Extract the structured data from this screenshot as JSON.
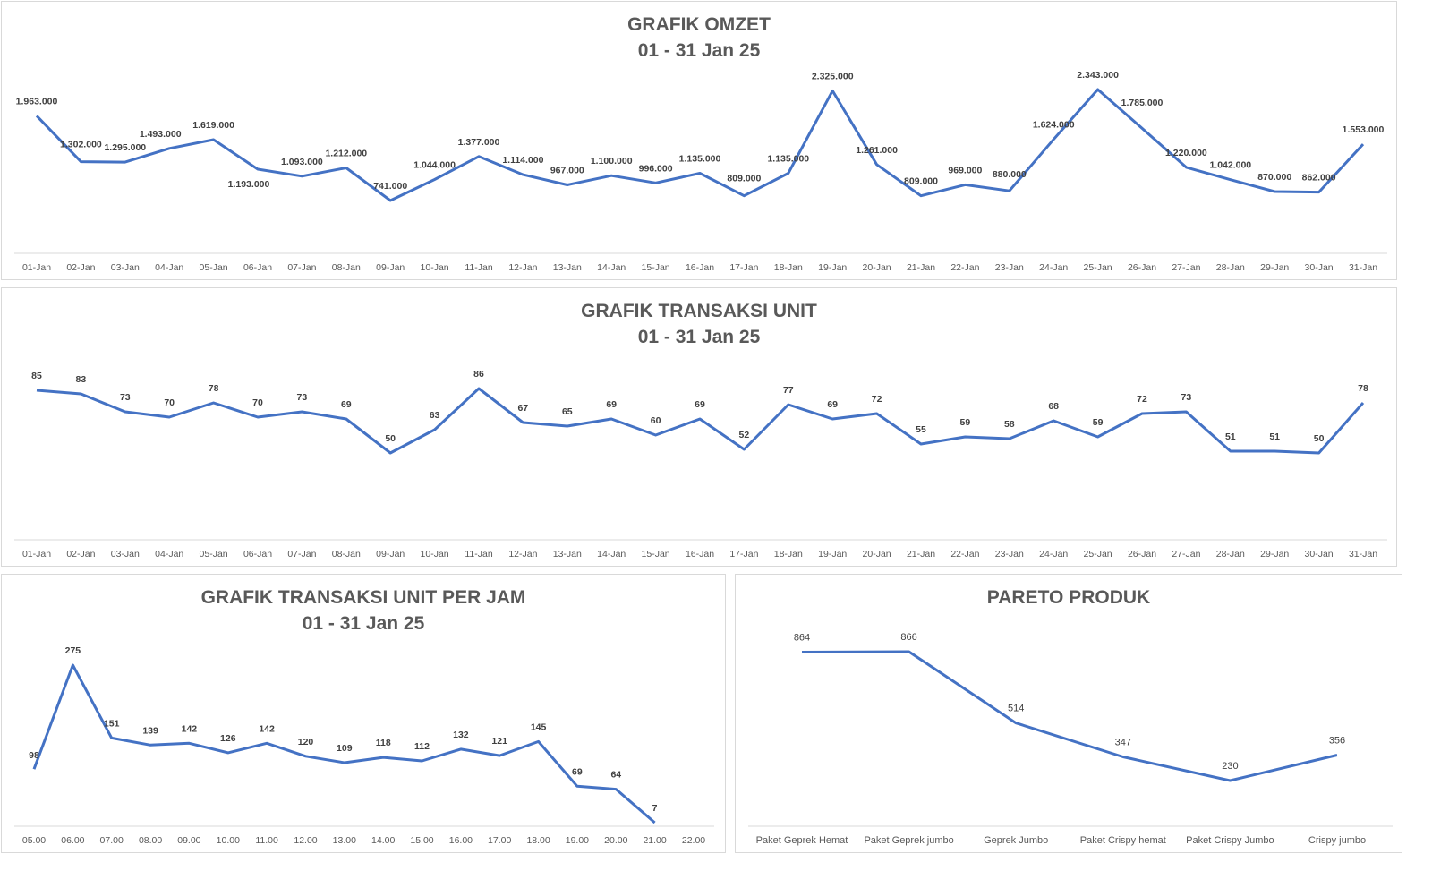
{
  "colors": {
    "line": "#4472c4",
    "axis": "#d9d9d9",
    "text": "#404040",
    "title": "#595959"
  },
  "chart_data": [
    {
      "type": "line",
      "title": "GRAFIK OMZET",
      "subtitle": "01 - 31 Jan 25",
      "categories": [
        "01-Jan",
        "02-Jan",
        "03-Jan",
        "04-Jan",
        "05-Jan",
        "06-Jan",
        "07-Jan",
        "08-Jan",
        "09-Jan",
        "10-Jan",
        "11-Jan",
        "12-Jan",
        "13-Jan",
        "14-Jan",
        "15-Jan",
        "16-Jan",
        "17-Jan",
        "18-Jan",
        "19-Jan",
        "20-Jan",
        "21-Jan",
        "22-Jan",
        "23-Jan",
        "24-Jan",
        "25-Jan",
        "26-Jan",
        "27-Jan",
        "28-Jan",
        "29-Jan",
        "30-Jan",
        "31-Jan"
      ],
      "values": [
        1963000,
        1302000,
        1295000,
        1493000,
        1619000,
        1193000,
        1093000,
        1212000,
        741000,
        1044000,
        1377000,
        1114000,
        967000,
        1100000,
        996000,
        1135000,
        809000,
        1135000,
        2325000,
        1261000,
        809000,
        969000,
        880000,
        1624000,
        2343000,
        1785000,
        1220000,
        1042000,
        870000,
        862000,
        1553000
      ],
      "data_labels": [
        "1.963.000",
        "1.302.000",
        "1.295.000",
        "1.493.000",
        "1.619.000",
        "1.193.000",
        "1.093.000",
        "1.212.000",
        "741.000",
        "1.044.000",
        "1.377.000",
        "1.114.000",
        "967.000",
        "1.100.000",
        "996.000",
        "1.135.000",
        "809.000",
        "1.135.000",
        "2.325.000",
        "1.261.000",
        "809.000",
        "969.000",
        "880.000",
        "1.624.000",
        "2.343.000",
        "1.785.000",
        "1.220.000",
        "1.042.000",
        "870.000",
        "862.000",
        "1.553.000"
      ],
      "grid": false
    },
    {
      "type": "line",
      "title": "GRAFIK TRANSAKSI UNIT",
      "subtitle": "01 - 31 Jan 25",
      "categories": [
        "01-Jan",
        "02-Jan",
        "03-Jan",
        "04-Jan",
        "05-Jan",
        "06-Jan",
        "07-Jan",
        "08-Jan",
        "09-Jan",
        "10-Jan",
        "11-Jan",
        "12-Jan",
        "13-Jan",
        "14-Jan",
        "15-Jan",
        "16-Jan",
        "17-Jan",
        "18-Jan",
        "19-Jan",
        "20-Jan",
        "21-Jan",
        "22-Jan",
        "23-Jan",
        "24-Jan",
        "25-Jan",
        "26-Jan",
        "27-Jan",
        "28-Jan",
        "29-Jan",
        "30-Jan",
        "31-Jan"
      ],
      "values": [
        85,
        83,
        73,
        70,
        78,
        70,
        73,
        69,
        50,
        63,
        86,
        67,
        65,
        69,
        60,
        69,
        52,
        77,
        69,
        72,
        55,
        59,
        58,
        68,
        59,
        72,
        73,
        51,
        51,
        50,
        78
      ],
      "data_labels": [
        "85",
        "83",
        "73",
        "70",
        "78",
        "70",
        "73",
        "69",
        "50",
        "63",
        "86",
        "67",
        "65",
        "69",
        "60",
        "69",
        "52",
        "77",
        "69",
        "72",
        "55",
        "59",
        "58",
        "68",
        "59",
        "72",
        "73",
        "51",
        "51",
        "50",
        "78"
      ],
      "grid": false
    },
    {
      "type": "line",
      "title": "GRAFIK TRANSAKSI UNIT PER JAM",
      "subtitle": "01 - 31 Jan 25",
      "categories": [
        "05.00",
        "06.00",
        "07.00",
        "08.00",
        "09.00",
        "10.00",
        "11.00",
        "12.00",
        "13.00",
        "14.00",
        "15.00",
        "16.00",
        "17.00",
        "18.00",
        "19.00",
        "20.00",
        "21.00",
        "22.00"
      ],
      "values": [
        98,
        275,
        151,
        139,
        142,
        126,
        142,
        120,
        109,
        118,
        112,
        132,
        121,
        145,
        69,
        64,
        7,
        null
      ],
      "data_labels": [
        "98",
        "275",
        "151",
        "139",
        "142",
        "126",
        "142",
        "120",
        "109",
        "118",
        "112",
        "132",
        "121",
        "145",
        "69",
        "64",
        "7",
        ""
      ],
      "grid": false
    },
    {
      "type": "line",
      "title": "PARETO PRODUK",
      "subtitle": "",
      "categories": [
        "Paket Geprek Hemat",
        "Paket Geprek jumbo",
        "Geprek Jumbo",
        "Paket Crispy hemat",
        "Paket Crispy Jumbo",
        "Crispy jumbo"
      ],
      "values": [
        864,
        866,
        514,
        347,
        230,
        356
      ],
      "data_labels": [
        "864",
        "866",
        "514",
        "347",
        "230",
        "356"
      ],
      "grid": false
    }
  ]
}
